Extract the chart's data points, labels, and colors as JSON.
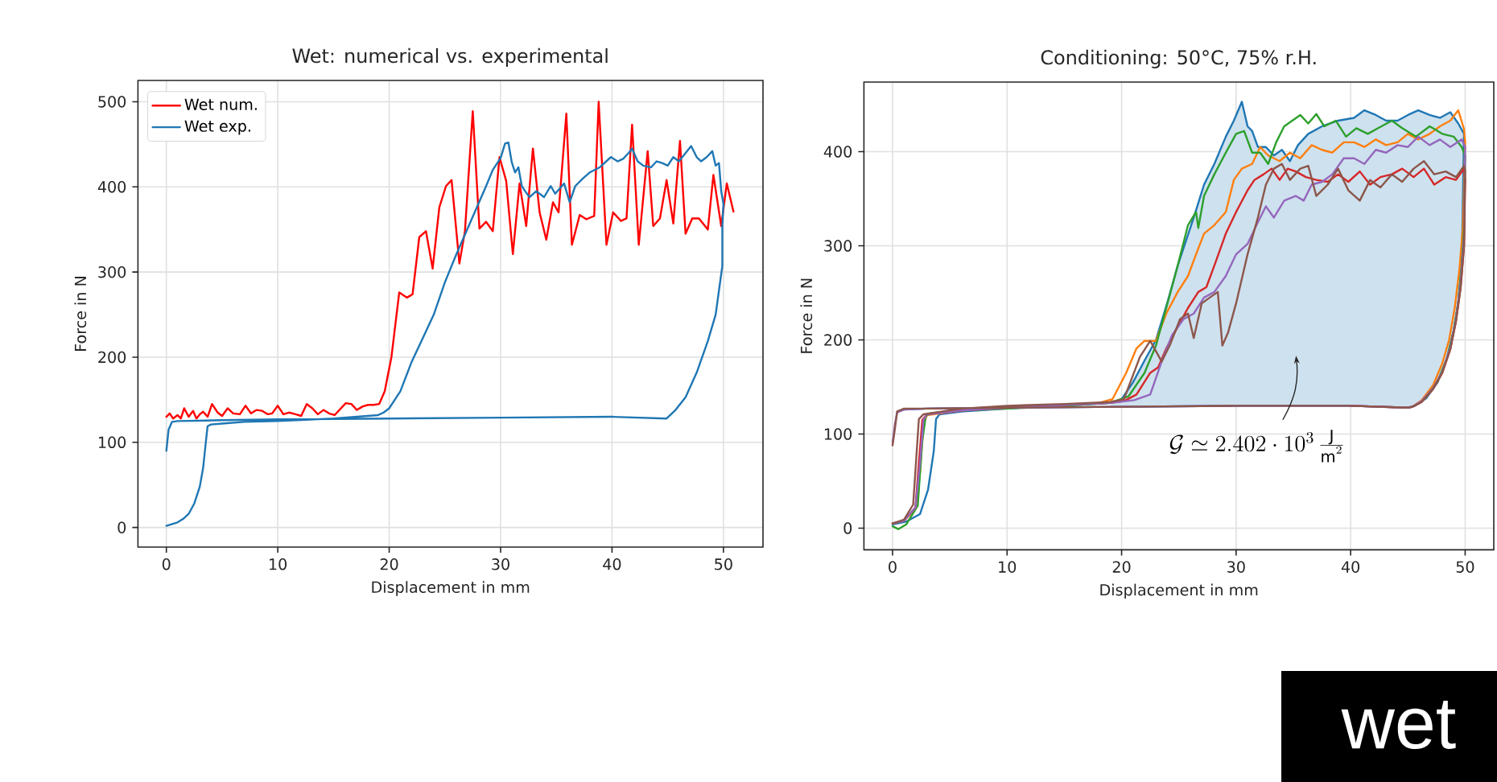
{
  "chart_data": [
    {
      "type": "line",
      "title": "Wet: numerical vs. experimental",
      "xlabel": "Displacement in mm",
      "ylabel": "Force in N",
      "xlim": [
        -2.55,
        53.55
      ],
      "ylim": [
        -23,
        525
      ],
      "xticks": [
        0,
        10,
        20,
        30,
        40,
        50
      ],
      "yticks": [
        0,
        100,
        200,
        300,
        400,
        500
      ],
      "grid": true,
      "legend": "top left",
      "series": [
        {
          "name": "Wet num.",
          "color": "#ff0000",
          "x": [
            0,
            0.3,
            0.6,
            1,
            1.3,
            1.6,
            2,
            2.4,
            2.7,
            3,
            3.3,
            3.7,
            4.1,
            4.6,
            5,
            5.5,
            6,
            6.6,
            7.1,
            7.6,
            8.1,
            8.6,
            9.1,
            9.5,
            10,
            10.5,
            11,
            11.6,
            12.1,
            12.6,
            13.1,
            13.6,
            14.1,
            14.6,
            15.1,
            15.6,
            16.1,
            16.6,
            17.1,
            17.6,
            18.1,
            18.6,
            19.1,
            19.6,
            20.2,
            20.9,
            21.6,
            22.1,
            22.7,
            23.3,
            23.9,
            24.5,
            25.1,
            25.6,
            26.3,
            26.8,
            27.5,
            28.1,
            28.7,
            29.3,
            29.9,
            30.5,
            31.1,
            31.7,
            32.3,
            32.9,
            33.5,
            34.1,
            34.7,
            35.2,
            35.9,
            36.4,
            37.1,
            37.7,
            38.4,
            38.8,
            39.5,
            40.1,
            40.8,
            41.3,
            41.8,
            42.4,
            43.2,
            43.7,
            44.3,
            44.9,
            45.5,
            46.1,
            46.6,
            47.2,
            47.8,
            48.6,
            49.1,
            49.8,
            50.3,
            50.9
          ],
          "values": [
            130,
            134,
            128,
            132,
            128,
            140,
            130,
            137,
            128,
            133,
            136,
            130,
            145,
            135,
            131,
            140,
            134,
            133,
            143,
            134,
            138,
            137,
            133,
            134,
            143,
            133,
            135,
            133,
            131,
            145,
            140,
            133,
            138,
            134,
            132,
            139,
            146,
            145,
            138,
            142,
            144,
            144,
            145,
            160,
            200,
            276,
            270,
            274,
            341,
            348,
            304,
            376,
            401,
            408,
            310,
            348,
            489,
            351,
            359,
            348,
            435,
            407,
            321,
            404,
            354,
            445,
            370,
            338,
            382,
            370,
            486,
            332,
            367,
            362,
            366,
            500,
            332,
            370,
            360,
            363,
            473,
            332,
            442,
            354,
            363,
            408,
            357,
            454,
            345,
            363,
            363,
            350,
            414,
            354,
            404,
            371
          ]
        },
        {
          "name": "Wet exp.",
          "color": "#1f77b4",
          "x": [
            0,
            1,
            1.5,
            2,
            2.5,
            3,
            3.3,
            3.5,
            3.7,
            4,
            5,
            7,
            10,
            15,
            19,
            19.5,
            20,
            21,
            22,
            23,
            24,
            25,
            26,
            27,
            28,
            28.6,
            29.3,
            30,
            30.4,
            30.7,
            31,
            31.3,
            31.6,
            31.9,
            32.2,
            32.6,
            33.2,
            33.9,
            34.5,
            34.9,
            35.7,
            36.2,
            36.7,
            37.4,
            38,
            38.9,
            39.9,
            40.5,
            41,
            41.5,
            41.8,
            42.3,
            42.8,
            43.5,
            44,
            44.5,
            45,
            45.5,
            46,
            46.5,
            47.1,
            47.6,
            48,
            48.5,
            49,
            49.3,
            49.6,
            49.8,
            50,
            49.9,
            49.9,
            49.3,
            48.6,
            47.6,
            46.6,
            45.7,
            44.9,
            40,
            30,
            20,
            10,
            5,
            1,
            0.5,
            0.2,
            0
          ],
          "values": [
            2,
            6,
            10,
            16,
            28,
            48,
            70,
            95,
            119,
            121,
            122,
            124,
            125,
            128,
            132,
            135,
            140,
            160,
            194,
            222,
            250,
            288,
            320,
            350,
            380,
            398,
            420,
            434,
            451,
            452,
            429,
            417,
            423,
            401,
            395,
            388,
            395,
            388,
            401,
            392,
            404,
            382,
            401,
            410,
            417,
            423,
            435,
            430,
            433,
            440,
            445,
            430,
            425,
            423,
            430,
            428,
            425,
            435,
            430,
            438,
            448,
            435,
            430,
            435,
            442,
            425,
            428,
            395,
            380,
            354,
            307,
            250,
            219,
            182,
            153,
            138,
            128,
            130,
            129,
            128,
            127,
            126,
            125,
            124,
            115,
            90
          ]
        }
      ]
    },
    {
      "type": "line",
      "title": "Conditioning: 50°C, 75% r.H.",
      "xlabel": "Displacement in mm",
      "ylabel": "Force in N",
      "xlim": [
        -2.5,
        52.5
      ],
      "ylim": [
        -23,
        474
      ],
      "xticks": [
        0,
        10,
        20,
        30,
        40,
        50
      ],
      "yticks": [
        0,
        100,
        200,
        300,
        400
      ],
      "grid": true,
      "annotations": [
        "\\mathcal{G} \\simeq 2.402 \\cdot 10^{3}\\,\\frac{\\mathrm{J}}{\\mathrm{m}^{2}}"
      ],
      "series": [
        {
          "color": "#1f77b4",
          "x": [
            0,
            1.2,
            2.4,
            3.1,
            3.6,
            3.8,
            4.1,
            6,
            10,
            15,
            19,
            20,
            21,
            22,
            23,
            24,
            24.9,
            26.3,
            27.2,
            28.1,
            29.1,
            29.8,
            30.5,
            31,
            31.4,
            31.9,
            32.6,
            33.3,
            34,
            34.7,
            35.4,
            36.3,
            37.5,
            38.9,
            40.3,
            41.2,
            42.2,
            43.1,
            44.1,
            45,
            45.9,
            46.9,
            47.8,
            48.7,
            49.4,
            49.9,
            49.7,
            49.4,
            49,
            48.4,
            47.6,
            46.6,
            45.6,
            45,
            40,
            30,
            20,
            10,
            3,
            1
          ],
          "values": [
            4,
            7,
            15,
            41,
            82,
            116,
            121,
            124,
            127,
            130,
            133,
            137,
            155,
            178,
            200,
            240,
            279,
            330,
            365,
            387,
            416,
            433,
            453,
            427,
            422,
            405,
            405,
            396,
            402,
            390,
            407,
            419,
            427,
            433,
            436,
            444,
            439,
            433,
            433,
            439,
            444,
            439,
            436,
            442,
            430,
            419,
            280,
            240,
            210,
            180,
            155,
            138,
            130,
            128,
            130,
            130,
            129,
            128,
            127,
            126
          ],
          "upper": [
            null,
            null,
            null,
            null,
            null,
            null,
            null,
            null,
            null,
            null,
            133,
            137,
            155,
            178,
            200,
            240,
            279,
            330,
            365,
            387,
            416,
            433,
            453,
            427,
            422,
            405,
            405,
            396,
            402,
            390,
            407,
            419,
            427,
            433,
            436,
            444,
            439,
            433,
            433,
            439,
            444,
            439,
            436,
            442,
            430,
            419,
            null,
            null,
            null,
            null,
            null,
            null,
            null,
            null,
            null,
            null,
            null,
            null,
            null,
            null
          ],
          "lower": [
            null,
            null,
            null,
            null,
            null,
            null,
            null,
            null,
            null,
            null,
            128,
            128,
            128,
            128,
            129,
            129,
            129,
            129,
            129,
            129,
            129,
            130,
            130,
            130,
            130,
            130,
            130,
            130,
            130,
            130,
            130,
            130,
            130,
            130,
            130,
            130,
            130,
            129,
            129,
            128,
            132,
            143,
            161,
            195,
            240,
            320,
            null,
            null,
            null,
            null,
            null,
            null,
            null,
            null,
            null,
            null,
            null,
            null,
            null,
            null
          ]
        },
        {
          "color": "#ff7f0e",
          "x": [
            0,
            1,
            2,
            2.4,
            2.7,
            3,
            6,
            10,
            15,
            18,
            19.2,
            20.4,
            21.3,
            22,
            23,
            23.9,
            24.9,
            25.8,
            26.5,
            27.2,
            28.1,
            29.1,
            29.8,
            30.5,
            31.4,
            32.1,
            32.8,
            33.8,
            34.7,
            35.6,
            36.6,
            37.5,
            38.4,
            39.4,
            40.3,
            41.2,
            42.2,
            43.1,
            44.1,
            45,
            45.9,
            46.9,
            47.8,
            48.7,
            49.4,
            49.9,
            50,
            49.8,
            49.5,
            49.1,
            48.6,
            48,
            47.2,
            46.2,
            45.4,
            45
          ],
          "values": [
            5,
            8,
            20,
            60,
            110,
            120,
            125,
            128,
            131,
            133,
            137,
            165,
            191,
            199,
            199,
            228,
            251,
            268,
            291,
            313,
            322,
            336,
            370,
            382,
            387,
            405,
            396,
            390,
            399,
            393,
            407,
            402,
            399,
            410,
            410,
            405,
            413,
            407,
            410,
            419,
            413,
            419,
            427,
            433,
            444,
            424,
            410,
            320,
            275,
            235,
            200,
            175,
            152,
            136,
            129,
            128
          ]
        },
        {
          "color": "#2ca02c",
          "x": [
            0,
            0.5,
            1.2,
            2.2,
            2.6,
            2.9,
            3.3,
            6,
            10,
            15,
            19,
            20.6,
            22,
            23,
            23.9,
            24.9,
            25.8,
            26.5,
            26.7,
            27.2,
            28.1,
            29.1,
            30,
            30.7,
            31.4,
            32.1,
            32.8,
            33.5,
            34.2,
            34.9,
            35.6,
            36.3,
            37,
            37.7,
            38.7,
            39.6,
            40.5,
            41.5,
            42.4,
            43.6,
            44.5,
            45.7,
            46.9,
            48,
            49,
            49.7,
            50,
            49.9,
            49.7,
            49.4,
            49,
            48.4,
            47.6,
            46.6
          ],
          "values": [
            2,
            -1,
            4,
            24,
            93,
            119,
            122,
            125,
            127,
            130,
            133,
            140,
            165,
            194,
            234,
            279,
            322,
            336,
            319,
            353,
            376,
            399,
            419,
            422,
            399,
            399,
            387,
            410,
            427,
            433,
            439,
            430,
            440,
            427,
            433,
            416,
            425,
            419,
            425,
            433,
            425,
            416,
            427,
            419,
            416,
            405,
            396,
            320,
            280,
            240,
            210,
            180,
            156,
            139
          ]
        },
        {
          "color": "#d62728",
          "x": [
            0,
            1,
            2,
            2.3,
            2.6,
            3,
            6,
            10,
            15,
            19,
            20.2,
            21.3,
            22.5,
            23.2,
            23.9,
            24.9,
            25.8,
            26.7,
            27.4,
            28.1,
            29.1,
            30,
            31,
            31.6,
            32.4,
            33.1,
            33.8,
            34.5,
            35.2,
            36.1,
            37,
            38,
            38.9,
            39.8,
            40.8,
            41.7,
            42.6,
            43.6,
            44.5,
            45.5,
            46.4,
            47.3,
            48.3,
            49.2,
            49.9,
            50,
            49.9,
            49.6,
            49.2,
            48.7,
            48,
            47.2,
            46.2,
            45.4,
            45,
            40
          ],
          "values": [
            5,
            8,
            22,
            70,
            115,
            121,
            125,
            128,
            131,
            133,
            135,
            142,
            165,
            171,
            191,
            214,
            234,
            251,
            256,
            279,
            313,
            336,
            359,
            370,
            376,
            382,
            370,
            382,
            379,
            373,
            370,
            368,
            376,
            368,
            379,
            365,
            373,
            376,
            382,
            373,
            382,
            365,
            373,
            370,
            382,
            370,
            300,
            255,
            220,
            190,
            165,
            148,
            134,
            129,
            128,
            130
          ]
        },
        {
          "color": "#9467bd",
          "x": [
            0,
            1,
            2,
            2.4,
            2.7,
            3,
            6,
            10,
            15,
            19,
            21.1,
            22.5,
            23.5,
            24.4,
            25.4,
            26.3,
            27.2,
            28.1,
            29.1,
            30,
            31,
            31.9,
            32.6,
            33.3,
            34.2,
            35.2,
            35.9,
            36.6,
            37.5,
            38.4,
            39.4,
            40.3,
            41.2,
            42.2,
            43.1,
            44.1,
            45,
            45.9,
            46.9,
            47.8,
            48.7,
            49.7,
            50,
            49.9,
            49.6,
            49.2,
            48.7,
            48,
            47.2,
            46.2,
            45.4,
            45,
            40,
            30,
            20,
            10,
            3,
            1,
            0.4,
            0.2,
            0
          ],
          "values": [
            5,
            8,
            22,
            70,
            115,
            121,
            125,
            128,
            131,
            133,
            136,
            142,
            177,
            205,
            222,
            228,
            245,
            251,
            268,
            291,
            302,
            325,
            342,
            330,
            348,
            353,
            348,
            365,
            368,
            376,
            393,
            393,
            387,
            402,
            399,
            407,
            405,
            416,
            407,
            413,
            405,
            413,
            405,
            310,
            260,
            222,
            192,
            166,
            149,
            135,
            129,
            128,
            130,
            130,
            129,
            128,
            127,
            126,
            123,
            110,
            91
          ]
        },
        {
          "color": "#8c564b",
          "x": [
            0,
            1,
            1.8,
            2.1,
            2.3,
            2.7,
            6,
            10,
            15,
            19,
            20.2,
            21.6,
            22.5,
            23.5,
            24.2,
            25.1,
            25.8,
            26.3,
            27,
            27.7,
            28.4,
            28.8,
            29.3,
            30,
            31,
            31.9,
            32.6,
            33.3,
            34,
            34.7,
            35.6,
            36.3,
            37,
            38,
            38.9,
            39.8,
            40.8,
            41.7,
            42.6,
            43.6,
            44.5,
            45.5,
            46.4,
            47.3,
            48.3,
            49.2,
            49.9,
            50,
            49.9,
            49.6,
            49.2,
            48.7,
            48,
            47.2,
            46.2,
            45.4,
            45,
            40,
            30,
            20,
            10,
            3,
            1,
            0.4,
            0.2,
            0
          ],
          "values": [
            5,
            9,
            25,
            80,
            116,
            121,
            127,
            130,
            132,
            134,
            137,
            182,
            199,
            177,
            194,
            222,
            228,
            202,
            239,
            245,
            251,
            194,
            208,
            239,
            291,
            330,
            365,
            382,
            387,
            370,
            382,
            385,
            353,
            365,
            382,
            359,
            348,
            370,
            362,
            376,
            368,
            382,
            390,
            376,
            379,
            373,
            385,
            380,
            300,
            255,
            220,
            190,
            165,
            148,
            134,
            129,
            128,
            130,
            130,
            129,
            128,
            127,
            127,
            124,
            105,
            88
          ]
        }
      ]
    },
    {
      "type": "other",
      "title": "wet"
    }
  ]
}
